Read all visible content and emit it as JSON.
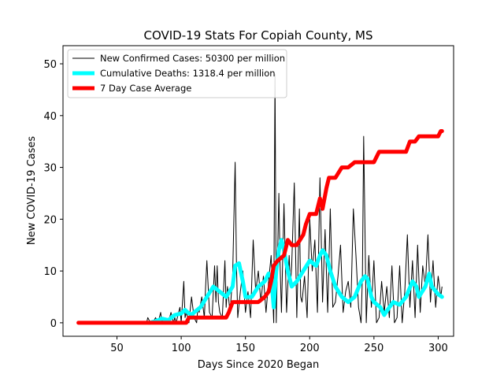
{
  "chart_data": {
    "type": "line",
    "title": "COVID-19 Stats For Copiah County, MS",
    "xlabel": "Days Since 2020 Began",
    "ylabel": "New COVID-19 Cases",
    "xlim": [
      8,
      312
    ],
    "ylim": [
      -2.6,
      53.5
    ],
    "xticks": [
      50,
      100,
      150,
      200,
      250,
      300
    ],
    "yticks": [
      0,
      10,
      20,
      30,
      40,
      50
    ],
    "grid": false,
    "legend_position": "top-left",
    "series": [
      {
        "name": "New Confirmed Cases: 50300 per million",
        "color": "#000000",
        "x": [
          73,
          74,
          76,
          78,
          80,
          82,
          84,
          85,
          86,
          88,
          90,
          91,
          92,
          94,
          95,
          96,
          98,
          99,
          100,
          102,
          103,
          104,
          106,
          108,
          110,
          112,
          113,
          114,
          116,
          118,
          119,
          120,
          122,
          124,
          126,
          127,
          128,
          129,
          130,
          132,
          134,
          135,
          136,
          138,
          140,
          142,
          143,
          144,
          146,
          148,
          150,
          152,
          154,
          156,
          158,
          160,
          162,
          164,
          166,
          168,
          170,
          172,
          173,
          174,
          176,
          177,
          178,
          180,
          182,
          184,
          185,
          186,
          188,
          190,
          192,
          193,
          194,
          196,
          198,
          200,
          202,
          204,
          206,
          208,
          210,
          212,
          214,
          216,
          218,
          220,
          222,
          224,
          226,
          228,
          230,
          232,
          234,
          236,
          238,
          240,
          241,
          242,
          244,
          246,
          248,
          250,
          252,
          254,
          256,
          258,
          260,
          262,
          264,
          266,
          268,
          270,
          272,
          274,
          276,
          278,
          280,
          282,
          284,
          286,
          288,
          290,
          292,
          294,
          296,
          298,
          300,
          302,
          303
        ],
        "values": [
          0,
          1,
          0,
          0,
          1,
          0,
          2,
          0,
          1,
          0,
          0,
          1,
          2,
          0,
          1,
          0,
          2,
          3,
          0,
          8,
          1,
          2,
          0,
          5,
          1,
          0,
          3,
          2,
          5,
          1,
          7,
          12,
          2,
          1,
          11,
          4,
          11,
          4,
          2,
          1,
          12,
          3,
          7,
          2,
          9,
          31,
          11,
          1,
          6,
          10,
          2,
          6,
          1,
          16,
          6,
          10,
          4,
          9,
          2,
          8,
          13,
          0,
          48,
          0,
          25,
          11,
          2,
          23,
          2,
          13,
          7,
          11,
          27,
          1,
          22,
          5,
          4,
          9,
          1,
          20,
          10,
          16,
          2,
          28,
          4,
          18,
          2,
          22,
          3,
          4,
          9,
          15,
          2,
          6,
          8,
          3,
          22,
          13,
          3,
          0,
          9,
          36,
          0,
          13,
          3,
          12,
          0,
          1,
          8,
          2,
          7,
          1,
          11,
          0,
          1,
          11,
          0,
          6,
          17,
          3,
          12,
          1,
          15,
          2,
          11,
          7,
          17,
          4,
          12,
          3,
          9,
          5,
          7
        ]
      },
      {
        "name": "Cumulative Deaths: 1318.4 per million",
        "color": "#00ffff",
        "x": [
          75,
          80,
          85,
          90,
          95,
          100,
          103,
          105,
          108,
          110,
          115,
          120,
          125,
          130,
          135,
          140,
          142,
          145,
          148,
          150,
          155,
          160,
          165,
          168,
          170,
          172,
          174,
          176,
          178,
          180,
          183,
          186,
          190,
          195,
          200,
          205,
          208,
          210,
          213,
          216,
          220,
          225,
          230,
          235,
          240,
          243,
          245,
          248,
          250,
          255,
          258,
          262,
          265,
          270,
          275,
          280,
          283,
          285,
          290,
          293,
          295,
          300,
          303
        ],
        "values": [
          0,
          0.3,
          0.8,
          0.5,
          1.5,
          1.8,
          2.5,
          2,
          1.5,
          2,
          3,
          5,
          7,
          6,
          5,
          7,
          11,
          11.5,
          8,
          5,
          5,
          7,
          8,
          9.5,
          9,
          3,
          10,
          14,
          16,
          14,
          10,
          7,
          8,
          10,
          12,
          11,
          13,
          14,
          13,
          10,
          7,
          5,
          4,
          5,
          8,
          9,
          8.5,
          5,
          4,
          3,
          1.5,
          3,
          4,
          3.5,
          5,
          8,
          7,
          5,
          7,
          9.5,
          7,
          5.5,
          5
        ]
      },
      {
        "name": "7 Day Case Average",
        "color": "#ff0000",
        "x": [
          20,
          100,
          104,
          106,
          108,
          110,
          135,
          137,
          140,
          160,
          165,
          168,
          170,
          172,
          175,
          180,
          183,
          186,
          190,
          195,
          197,
          200,
          205,
          208,
          210,
          213,
          215,
          220,
          225,
          230,
          235,
          240,
          245,
          250,
          252,
          254,
          258,
          260,
          270,
          275,
          278,
          282,
          285,
          288,
          295,
          300,
          302,
          303
        ],
        "values": [
          0,
          0,
          0,
          1,
          1,
          1,
          1,
          2,
          4,
          4,
          5,
          6,
          8,
          11,
          12,
          13,
          16,
          15,
          15,
          17,
          19,
          21,
          21,
          24,
          22,
          26,
          28,
          28,
          30,
          30,
          31,
          31,
          31,
          31,
          32,
          33,
          33,
          33,
          33,
          33,
          35,
          35,
          36,
          36,
          36,
          36,
          37,
          37
        ]
      }
    ]
  }
}
